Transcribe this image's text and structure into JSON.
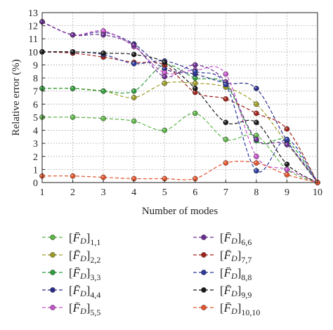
{
  "chart_data": {
    "type": "line",
    "title": "",
    "xlabel": "Number of modes",
    "ylabel": "Relative error (%)",
    "xlim": [
      1,
      10
    ],
    "ylim": [
      0,
      13
    ],
    "x_ticks": [
      "1",
      "2",
      "3",
      "4",
      "5",
      "6",
      "7",
      "8",
      "9",
      "10"
    ],
    "y_ticks": [
      "0",
      "1",
      "2",
      "3",
      "4",
      "5",
      "6",
      "7",
      "8",
      "9",
      "10",
      "11",
      "12",
      "13"
    ],
    "grid": true,
    "line_style": "dashed",
    "legend_position": "below",
    "x": [
      1,
      2,
      3,
      4,
      5,
      6,
      7,
      8,
      9,
      10
    ],
    "series": [
      {
        "name": "[F̄D]1,1",
        "name_sub": "1,1",
        "color": "#5cb346",
        "values": [
          5.0,
          5.0,
          4.9,
          4.7,
          4.0,
          5.3,
          3.3,
          3.6,
          1.0,
          0.0
        ]
      },
      {
        "name": "[F̄D]2,2",
        "name_sub": "2,2",
        "color": "#9c9b26",
        "values": [
          7.2,
          7.2,
          7.0,
          6.5,
          7.6,
          7.6,
          7.3,
          6.0,
          3.0,
          0.0
        ]
      },
      {
        "name": "[F̄D]3,3",
        "name_sub": "3,3",
        "color": "#2e9d3b",
        "values": [
          7.2,
          7.2,
          7.0,
          7.0,
          9.0,
          8.0,
          7.5,
          3.2,
          3.2,
          0.0
        ]
      },
      {
        "name": "[F̄D]4,4",
        "name_sub": "4,4",
        "color": "#2c2c8c",
        "values": [
          12.3,
          11.3,
          11.5,
          10.6,
          8.7,
          8.3,
          7.6,
          7.2,
          3.2,
          0.0
        ]
      },
      {
        "name": "[F̄D]5,5",
        "name_sub": "5,5",
        "color": "#c553c9",
        "values": [
          12.3,
          11.3,
          11.6,
          10.4,
          8.4,
          8.6,
          8.3,
          2.0,
          1.0,
          0.0
        ]
      },
      {
        "name": "[F̄D]6,6",
        "name_sub": "6,6",
        "color": "#6a2c91",
        "values": [
          12.3,
          11.3,
          11.3,
          10.5,
          8.1,
          9.0,
          7.7,
          3.3,
          2.9,
          0.0
        ]
      },
      {
        "name": "[F̄D]7,7",
        "name_sub": "7,7",
        "color": "#a1221b",
        "values": [
          10.0,
          9.9,
          9.6,
          9.2,
          9.0,
          6.9,
          6.4,
          5.3,
          4.1,
          0.0
        ]
      },
      {
        "name": "[F̄D]8,8",
        "name_sub": "8,8",
        "color": "#2c3a9c",
        "values": [
          10.0,
          10.0,
          9.8,
          9.1,
          9.3,
          8.5,
          7.5,
          0.9,
          3.3,
          0.0
        ]
      },
      {
        "name": "[F̄D]9,9",
        "name_sub": "9,9",
        "color": "#1a1a1a",
        "values": [
          10.0,
          10.0,
          9.9,
          9.8,
          9.2,
          7.2,
          4.6,
          4.6,
          1.4,
          0.0
        ]
      },
      {
        "name": "[F̄D]10,10",
        "name_sub": "10,10",
        "color": "#e2532b",
        "values": [
          0.5,
          0.5,
          0.4,
          0.3,
          0.3,
          0.3,
          1.5,
          1.5,
          0.6,
          0.0
        ]
      }
    ]
  }
}
